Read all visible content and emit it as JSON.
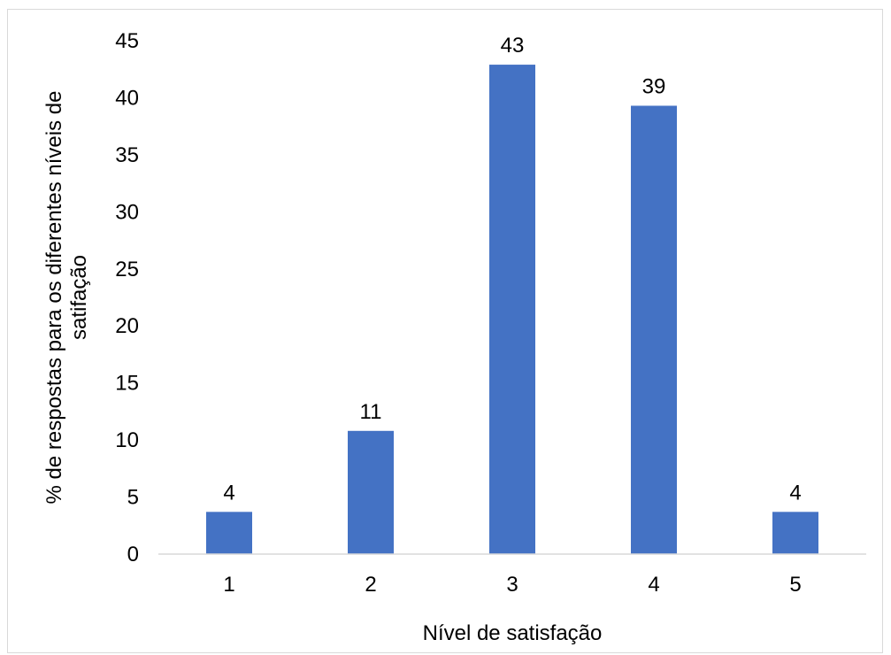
{
  "chart_data": {
    "type": "bar",
    "categories": [
      "1",
      "2",
      "3",
      "4",
      "5"
    ],
    "values": [
      3.7,
      10.8,
      42.9,
      39.3,
      3.7
    ],
    "data_labels": [
      "4",
      "11",
      "43",
      "39",
      "4"
    ],
    "title": "",
    "xlabel": "Nível de satisfação",
    "ylabel_lines": [
      "% de respostas para os diferentes níveis de",
      "satifação"
    ],
    "ylim": [
      0,
      45
    ],
    "yticks": [
      0,
      5,
      10,
      15,
      20,
      25,
      30,
      35,
      40,
      45
    ],
    "grid": false,
    "legend": "none",
    "bar_color": "#4472c4",
    "axis_color": "#d9d9d9"
  }
}
